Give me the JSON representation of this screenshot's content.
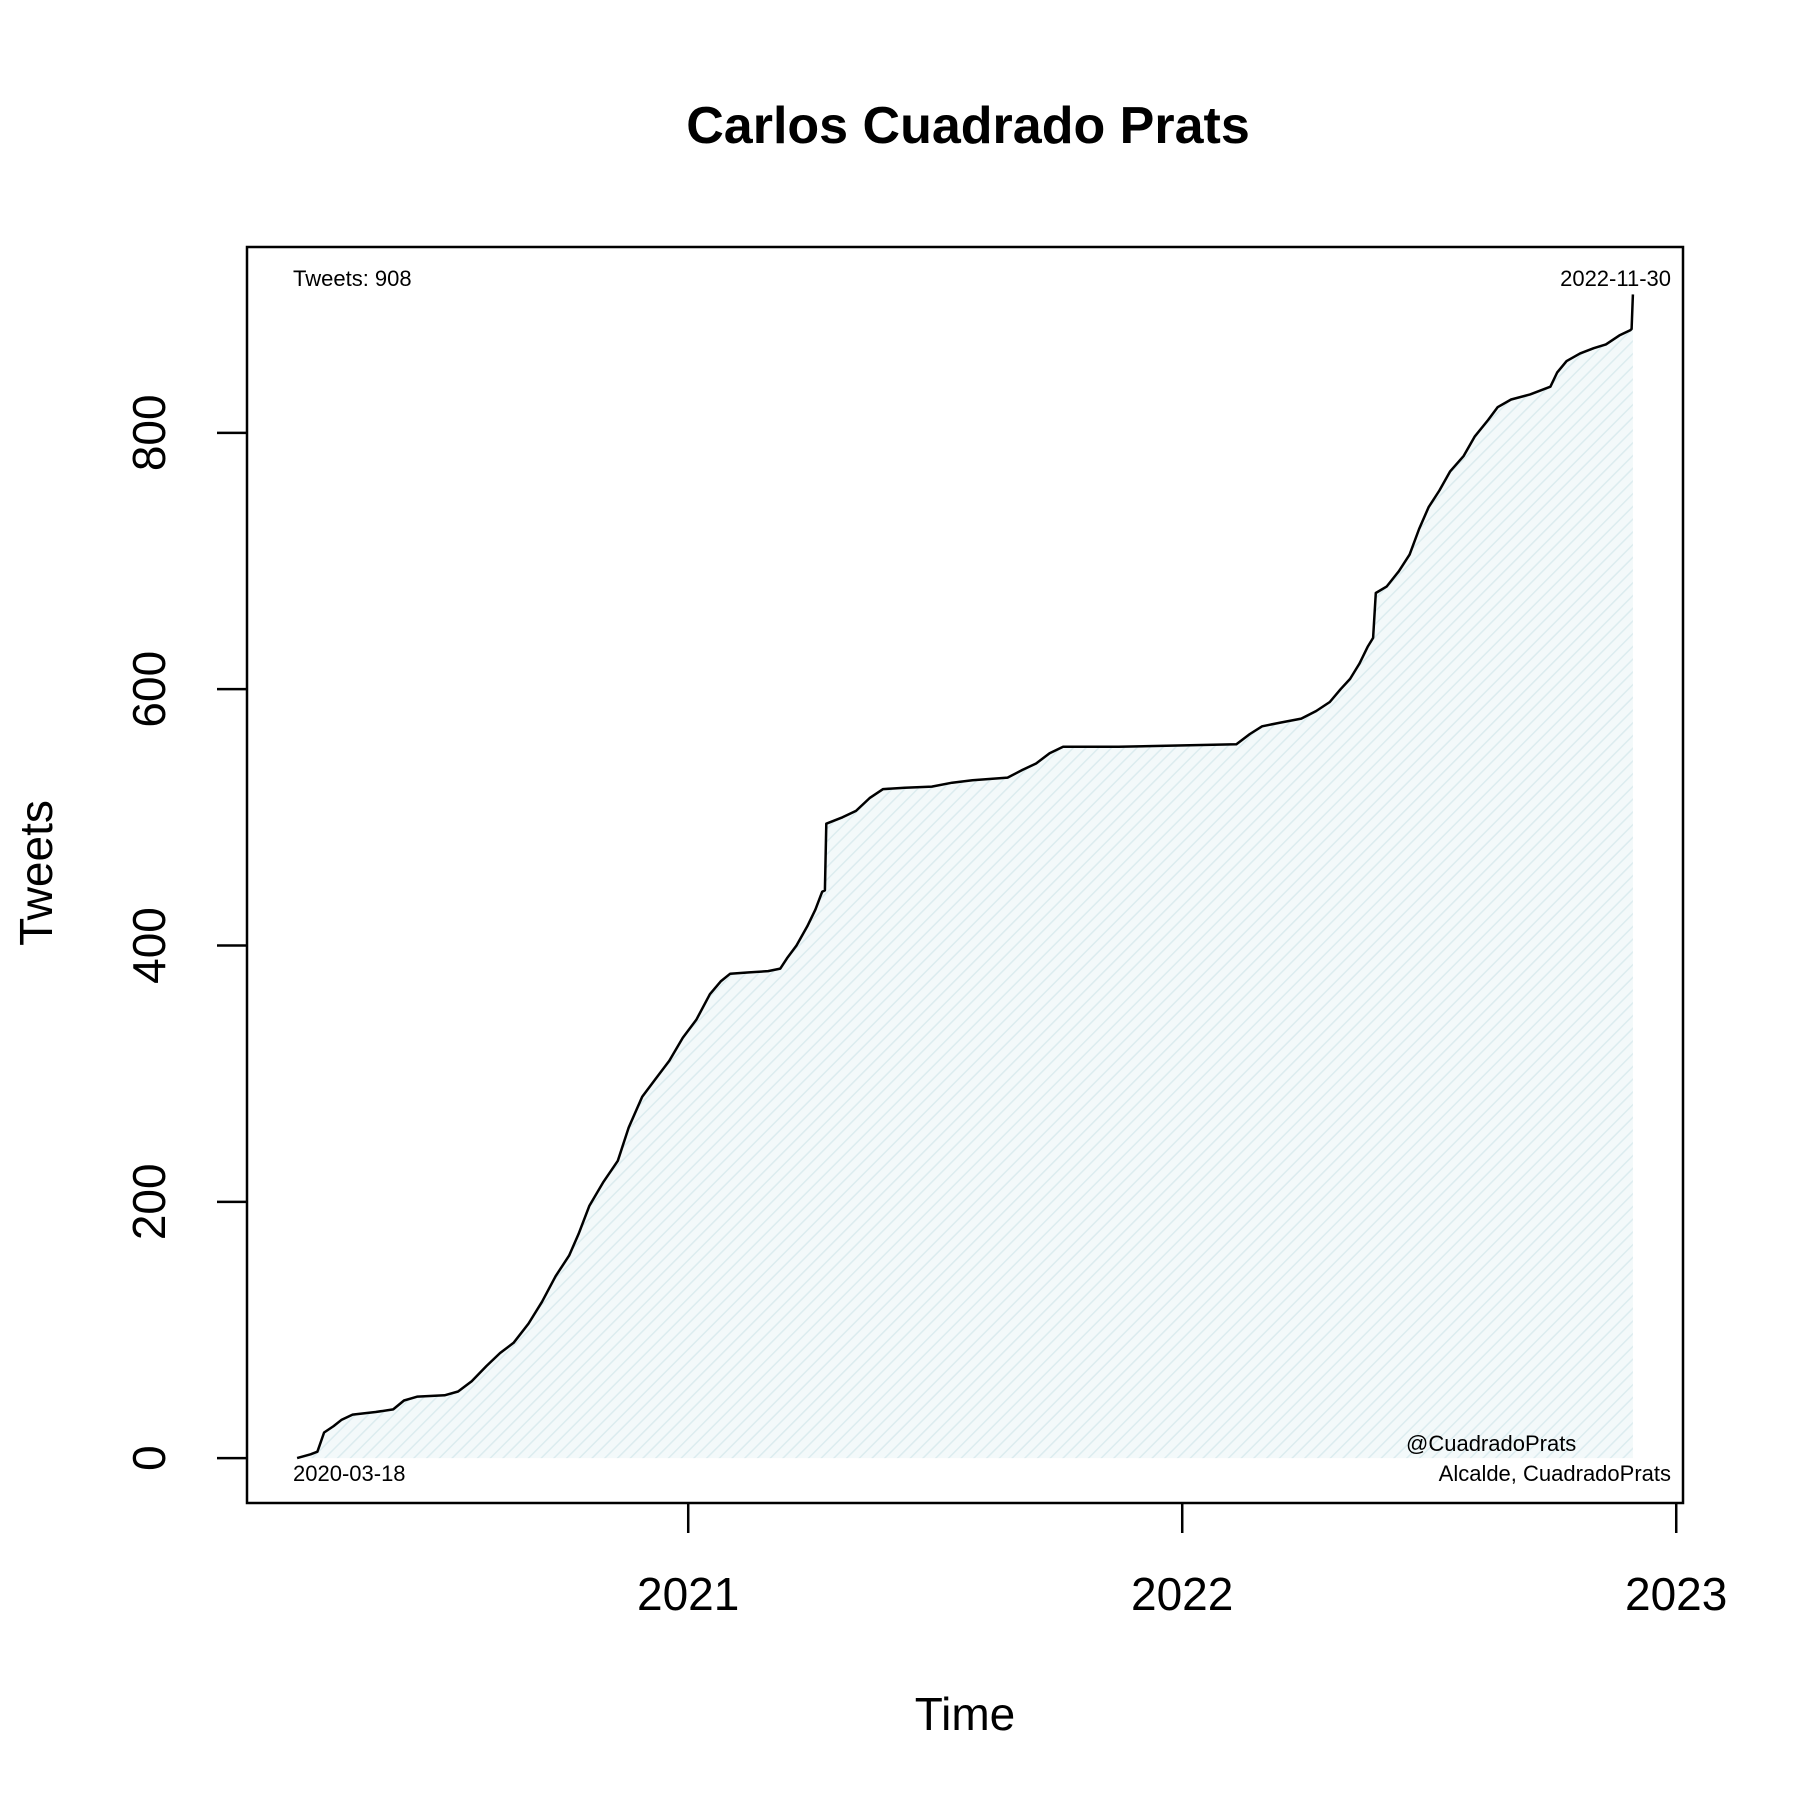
{
  "chart_data": {
    "type": "area",
    "title": "Carlos Cuadrado Prats",
    "xlabel": "Time",
    "ylabel": "Tweets",
    "x_ticks": [
      "2021",
      "2022",
      "2023"
    ],
    "y_ticks": [
      0,
      200,
      400,
      600,
      800
    ],
    "xlim": [
      "2020-02-10",
      "2023-01-06"
    ],
    "ylim": [
      -35,
      945
    ],
    "grid": false,
    "legend": "none",
    "fill_color": "#e6f2f4",
    "line_color": "#000000",
    "annotations": {
      "top_left": "Tweets: 908",
      "top_right": "2022-11-30",
      "bottom_left": "2020-03-18",
      "bottom_right_line1": "@CuadradoPrats",
      "bottom_right_line2": "Alcalde, CuadradoPrats"
    },
    "series": [
      {
        "points": [
          [
            "2020-03-18",
            0
          ],
          [
            "2020-03-28",
            3
          ],
          [
            "2020-04-02",
            5
          ],
          [
            "2020-04-07",
            20
          ],
          [
            "2020-04-14",
            25
          ],
          [
            "2020-04-20",
            30
          ],
          [
            "2020-04-28",
            34
          ],
          [
            "2020-05-15",
            36
          ],
          [
            "2020-05-28",
            38
          ],
          [
            "2020-06-05",
            45
          ],
          [
            "2020-06-15",
            48
          ],
          [
            "2020-07-05",
            49
          ],
          [
            "2020-07-15",
            52
          ],
          [
            "2020-07-25",
            60
          ],
          [
            "2020-08-05",
            72
          ],
          [
            "2020-08-15",
            82
          ],
          [
            "2020-08-25",
            90
          ],
          [
            "2020-09-05",
            105
          ],
          [
            "2020-09-15",
            122
          ],
          [
            "2020-09-25",
            142
          ],
          [
            "2020-10-05",
            158
          ],
          [
            "2020-10-12",
            175
          ],
          [
            "2020-10-20",
            197
          ],
          [
            "2020-10-30",
            215
          ],
          [
            "2020-11-10",
            232
          ],
          [
            "2020-11-18",
            258
          ],
          [
            "2020-11-28",
            282
          ],
          [
            "2020-12-08",
            296
          ],
          [
            "2020-12-18",
            310
          ],
          [
            "2020-12-28",
            328
          ],
          [
            "2021-01-07",
            342
          ],
          [
            "2021-01-17",
            362
          ],
          [
            "2021-01-25",
            372
          ],
          [
            "2021-02-01",
            378
          ],
          [
            "2021-02-15",
            379
          ],
          [
            "2021-03-01",
            380
          ],
          [
            "2021-03-10",
            382
          ],
          [
            "2021-03-15",
            390
          ],
          [
            "2021-03-22",
            400
          ],
          [
            "2021-03-30",
            415
          ],
          [
            "2021-04-05",
            428
          ],
          [
            "2021-04-10",
            442
          ],
          [
            "2021-04-12",
            443
          ],
          [
            "2021-04-13",
            495
          ],
          [
            "2021-04-25",
            500
          ],
          [
            "2021-05-05",
            505
          ],
          [
            "2021-05-15",
            515
          ],
          [
            "2021-05-25",
            522
          ],
          [
            "2021-06-10",
            523
          ],
          [
            "2021-06-30",
            524
          ],
          [
            "2021-07-15",
            527
          ],
          [
            "2021-07-30",
            529
          ],
          [
            "2021-08-25",
            531
          ],
          [
            "2021-09-05",
            537
          ],
          [
            "2021-09-15",
            542
          ],
          [
            "2021-09-25",
            550
          ],
          [
            "2021-10-05",
            555
          ],
          [
            "2021-11-15",
            555
          ],
          [
            "2022-02-10",
            557
          ],
          [
            "2022-02-20",
            565
          ],
          [
            "2022-03-01",
            571
          ],
          [
            "2022-03-15",
            574
          ],
          [
            "2022-03-30",
            577
          ],
          [
            "2022-04-10",
            583
          ],
          [
            "2022-04-20",
            590
          ],
          [
            "2022-04-28",
            600
          ],
          [
            "2022-05-05",
            608
          ],
          [
            "2022-05-12",
            620
          ],
          [
            "2022-05-18",
            633
          ],
          [
            "2022-05-22",
            640
          ],
          [
            "2022-05-24",
            675
          ],
          [
            "2022-06-01",
            680
          ],
          [
            "2022-06-10",
            692
          ],
          [
            "2022-06-18",
            705
          ],
          [
            "2022-06-25",
            725
          ],
          [
            "2022-07-02",
            742
          ],
          [
            "2022-07-10",
            755
          ],
          [
            "2022-07-18",
            770
          ],
          [
            "2022-07-28",
            782
          ],
          [
            "2022-08-05",
            797
          ],
          [
            "2022-08-15",
            810
          ],
          [
            "2022-08-22",
            820
          ],
          [
            "2022-09-01",
            826
          ],
          [
            "2022-09-15",
            830
          ],
          [
            "2022-09-30",
            836
          ],
          [
            "2022-10-05",
            847
          ],
          [
            "2022-10-12",
            856
          ],
          [
            "2022-10-22",
            862
          ],
          [
            "2022-11-01",
            866
          ],
          [
            "2022-11-10",
            869
          ],
          [
            "2022-11-20",
            876
          ],
          [
            "2022-11-28",
            880
          ],
          [
            "2022-11-29",
            881
          ],
          [
            "2022-11-30",
            908
          ]
        ]
      }
    ]
  }
}
